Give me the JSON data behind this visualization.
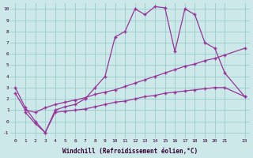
{
  "xlabel": "Windchill (Refroidissement éolien,°C)",
  "bg_color": "#cce8e8",
  "grid_color": "#99cccc",
  "line_color": "#993399",
  "xlim": [
    -0.5,
    23.5
  ],
  "ylim": [
    -1.5,
    10.5
  ],
  "xticks": [
    0,
    1,
    2,
    3,
    4,
    5,
    6,
    7,
    8,
    9,
    10,
    11,
    12,
    13,
    14,
    15,
    16,
    17,
    18,
    19,
    20,
    21,
    23
  ],
  "yticks": [
    -1,
    0,
    1,
    2,
    3,
    4,
    5,
    6,
    7,
    8,
    9,
    10
  ],
  "line1_x": [
    0,
    1,
    2,
    3,
    4,
    5,
    6,
    7,
    8,
    9,
    10,
    11,
    12,
    13,
    14,
    15,
    16,
    17,
    18,
    19,
    20,
    21,
    23
  ],
  "line1_y": [
    3.0,
    1.2,
    0.0,
    -1.0,
    1.0,
    1.3,
    1.5,
    2.0,
    3.0,
    4.0,
    7.5,
    8.0,
    10.0,
    9.5,
    10.2,
    10.1,
    6.2,
    10.0,
    9.5,
    7.0,
    6.5,
    4.3,
    2.2
  ],
  "line2_x": [
    0,
    1,
    2,
    3,
    4,
    5,
    6,
    7,
    8,
    9,
    10,
    11,
    12,
    13,
    14,
    15,
    16,
    17,
    18,
    19,
    20,
    21,
    23
  ],
  "line2_y": [
    2.5,
    1.0,
    0.8,
    1.2,
    1.5,
    1.7,
    1.9,
    2.1,
    2.4,
    2.6,
    2.8,
    3.1,
    3.4,
    3.7,
    4.0,
    4.3,
    4.6,
    4.9,
    5.1,
    5.4,
    5.6,
    5.9,
    6.5
  ],
  "line3_x": [
    1,
    2,
    3,
    4,
    5,
    6,
    7,
    8,
    9,
    10,
    11,
    12,
    13,
    14,
    15,
    16,
    17,
    18,
    19,
    20,
    21,
    23
  ],
  "line3_y": [
    0.8,
    -0.2,
    -1.0,
    0.8,
    0.9,
    1.0,
    1.1,
    1.3,
    1.5,
    1.7,
    1.8,
    2.0,
    2.2,
    2.3,
    2.5,
    2.6,
    2.7,
    2.8,
    2.9,
    3.0,
    3.0,
    2.2
  ]
}
